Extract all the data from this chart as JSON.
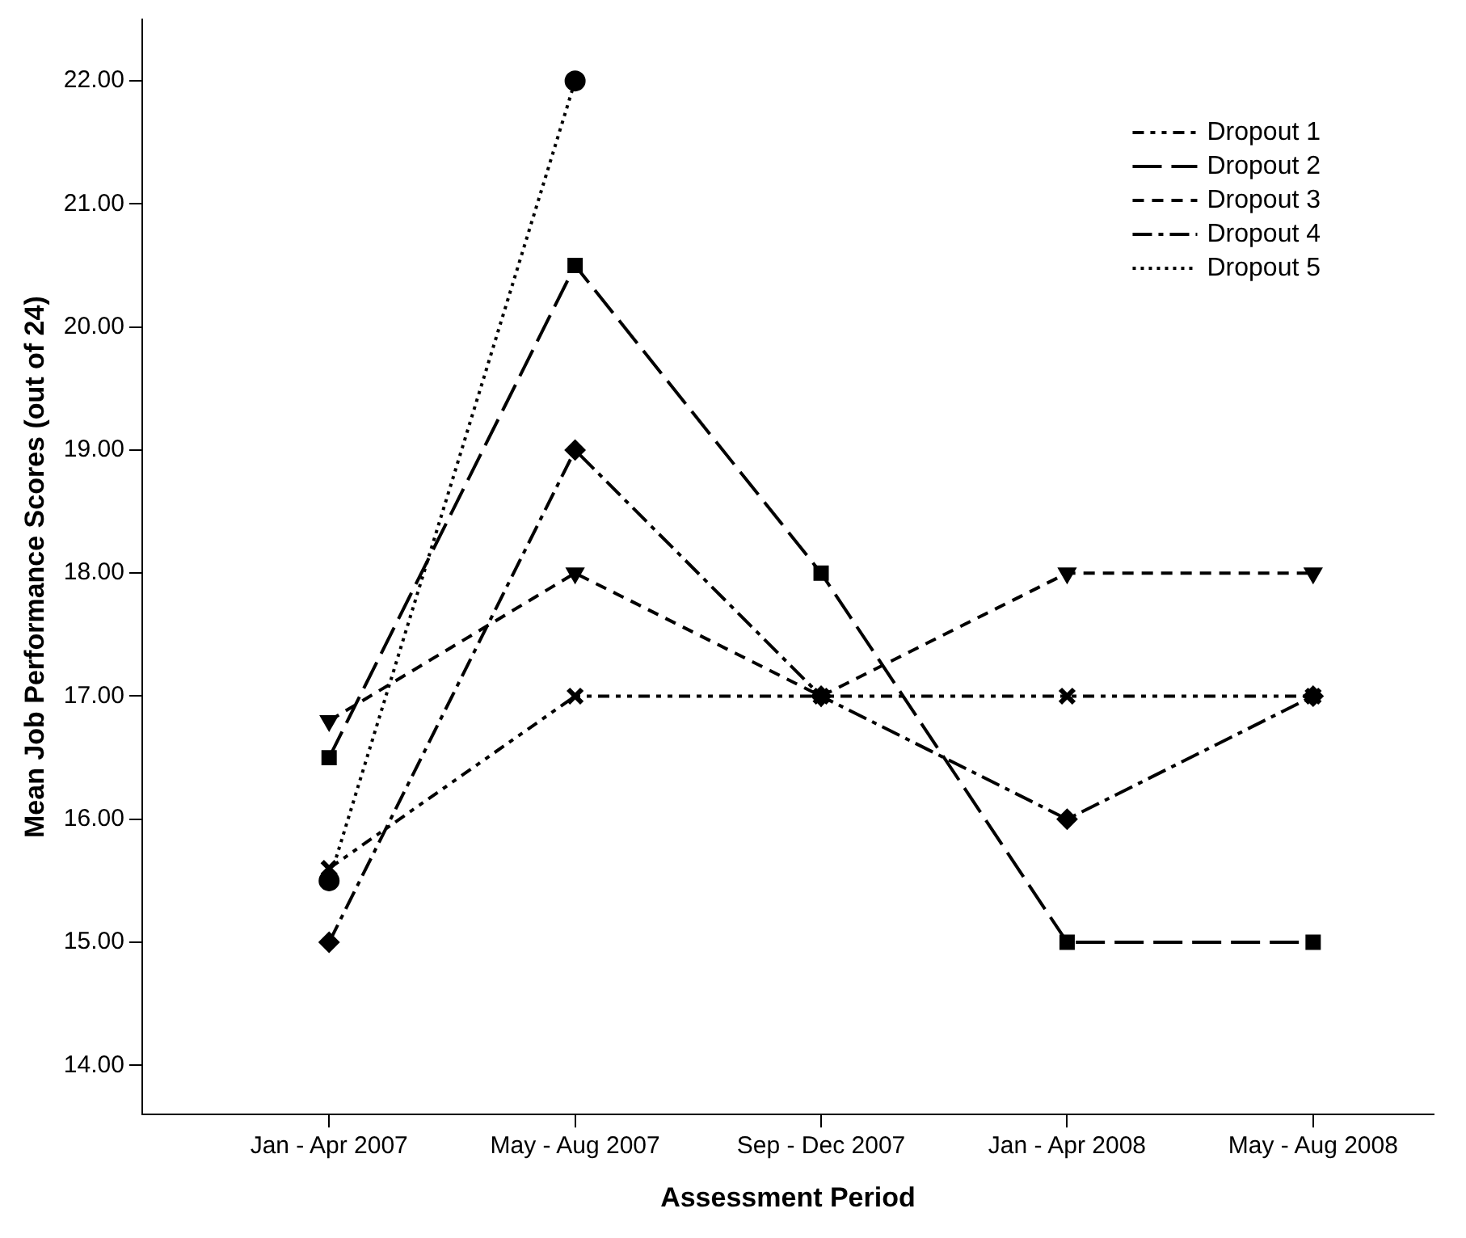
{
  "chart_data": {
    "type": "line",
    "xlabel": "Assessment Period",
    "ylabel": "Mean Job Performance Scores (out of 24)",
    "categories": [
      "Jan - Apr 2007",
      "May - Aug 2007",
      "Sep - Dec 2007",
      "Jan - Apr 2008",
      "May - Aug 2008"
    ],
    "ylim": [
      13.6,
      22.5
    ],
    "yticks": [
      {
        "value": 14,
        "label": "14.00"
      },
      {
        "value": 15,
        "label": "15.00"
      },
      {
        "value": 16,
        "label": "16.00"
      },
      {
        "value": 17,
        "label": "17.00"
      },
      {
        "value": 18,
        "label": "18.00"
      },
      {
        "value": 19,
        "label": "19.00"
      },
      {
        "value": 20,
        "label": "20.00"
      },
      {
        "value": 21,
        "label": "21.00"
      },
      {
        "value": 22,
        "label": "22.00"
      }
    ],
    "grid": false,
    "legend": "top right",
    "series": [
      {
        "name": "Dropout 1",
        "color": "#000000",
        "values": [
          15.6,
          17,
          17,
          17,
          17
        ],
        "marker": "cross",
        "line_style": "dashdotdot"
      },
      {
        "name": "Dropout 2",
        "color": "#000000",
        "values": [
          16.5,
          20.5,
          18,
          15,
          15
        ],
        "marker": "square",
        "line_style": "longdash"
      },
      {
        "name": "Dropout 3",
        "color": "#000000",
        "values": [
          16.8,
          18,
          17,
          18,
          18
        ],
        "marker": "triangle",
        "line_style": "dashed"
      },
      {
        "name": "Dropout 4",
        "color": "#000000",
        "values": [
          15,
          19,
          17,
          16,
          17
        ],
        "marker": "diamond",
        "line_style": "dashdot"
      },
      {
        "name": "Dropout 5",
        "color": "#000000",
        "values": [
          15.5,
          22,
          null,
          null,
          null
        ],
        "marker": "circle",
        "line_style": "dotted"
      }
    ]
  }
}
